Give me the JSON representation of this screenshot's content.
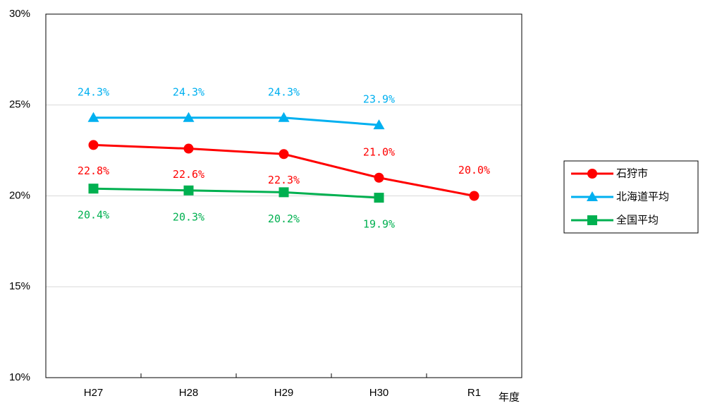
{
  "chart_data": {
    "type": "line",
    "x_label": "年度",
    "categories": [
      "H27",
      "H28",
      "H29",
      "H30",
      "R1"
    ],
    "series": [
      {
        "name": "石狩市",
        "color": "#ff0000",
        "marker": "circle",
        "values": [
          22.8,
          22.6,
          22.3,
          21.0,
          20.0
        ],
        "value_labels": [
          "22.8%",
          "22.6%",
          "22.3%",
          "21.0%",
          "20.0%"
        ]
      },
      {
        "name": "北海道平均",
        "color": "#00b0f0",
        "marker": "triangle",
        "values": [
          24.3,
          24.3,
          24.3,
          23.9,
          null
        ],
        "value_labels": [
          "24.3%",
          "24.3%",
          "24.3%",
          "23.9%",
          null
        ]
      },
      {
        "name": "全国平均",
        "color": "#00b050",
        "marker": "square",
        "values": [
          20.4,
          20.3,
          20.2,
          19.9,
          null
        ],
        "value_labels": [
          "20.4%",
          "20.3%",
          "20.2%",
          "19.9%",
          null
        ]
      }
    ],
    "ylim": [
      10,
      30
    ],
    "yticks": [
      {
        "value": 10,
        "label": "10%"
      },
      {
        "value": 15,
        "label": "15%"
      },
      {
        "value": 20,
        "label": "20%"
      },
      {
        "value": 25,
        "label": "25%"
      },
      {
        "value": 30,
        "label": "30%"
      }
    ],
    "grid": true,
    "legend": "right"
  }
}
